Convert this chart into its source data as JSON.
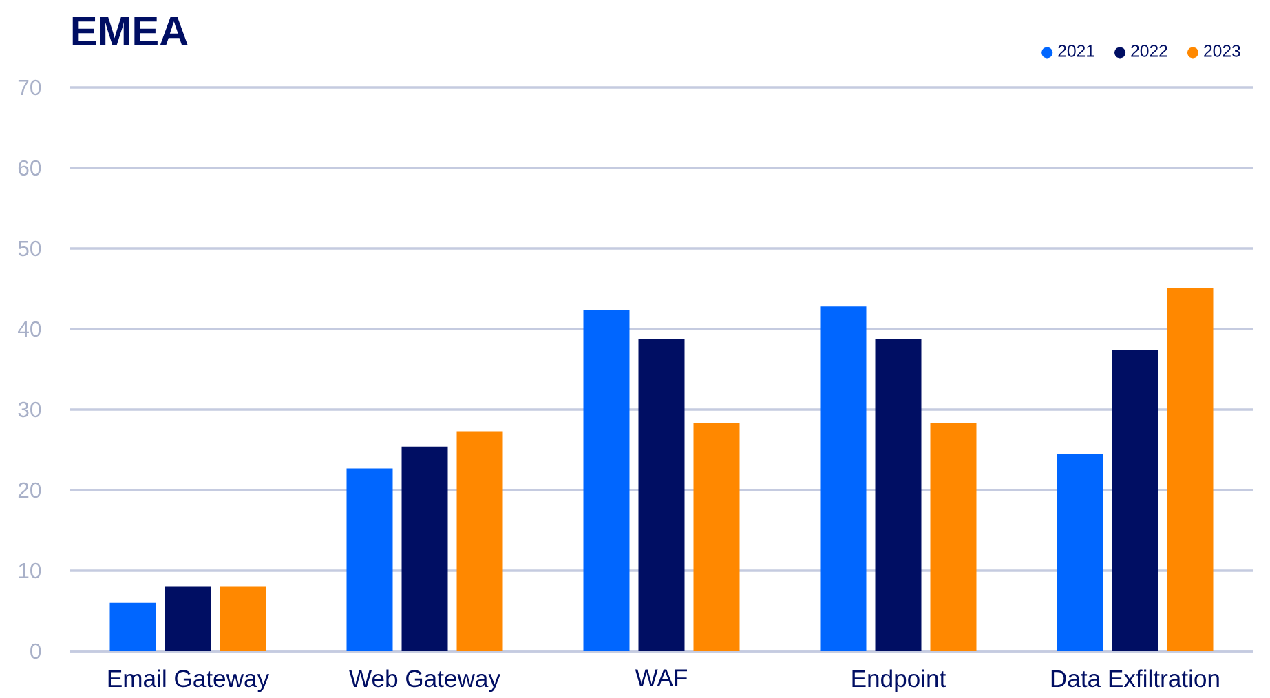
{
  "chart_data": {
    "type": "bar",
    "title": "EMEA",
    "categories": [
      "Email Gateway",
      "Web Gateway",
      "WAF",
      "Endpoint",
      "Data Exfiltration"
    ],
    "series": [
      {
        "name": "2021",
        "color": "#0066ff",
        "values": [
          6,
          22.7,
          42.3,
          42.8,
          24.5
        ]
      },
      {
        "name": "2022",
        "color": "#000e63",
        "values": [
          8,
          25.4,
          38.8,
          38.8,
          37.4
        ]
      },
      {
        "name": "2023",
        "color": "#ff8800",
        "values": [
          8,
          27.3,
          28.3,
          28.3,
          45.1
        ]
      }
    ],
    "ylim": [
      0,
      70
    ],
    "yticks": [
      0,
      10,
      20,
      30,
      40,
      50,
      60,
      70
    ],
    "grid": "y",
    "legend": "top right"
  }
}
